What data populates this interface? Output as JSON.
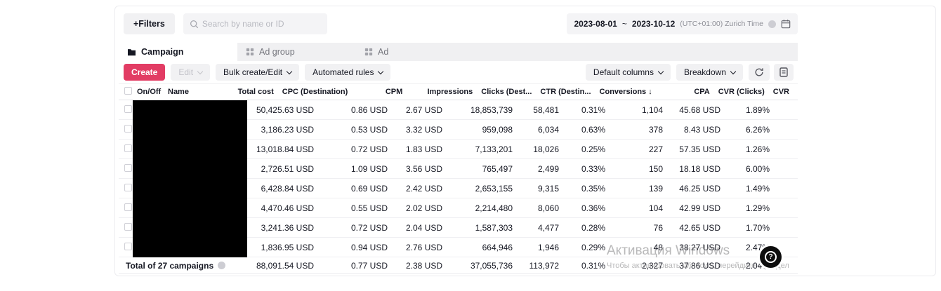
{
  "topbar": {
    "filters_label": "+Filters",
    "search_placeholder": "Search by name or ID",
    "date_start": "2023-08-01",
    "date_separator": "~",
    "date_end": "2023-10-12",
    "timezone_label": "(UTC+01:00) Zurich Time"
  },
  "tabs": [
    {
      "label": "Campaign",
      "active": true
    },
    {
      "label": "Ad group",
      "active": false
    },
    {
      "label": "Ad",
      "active": false
    }
  ],
  "toolbar": {
    "create": "Create",
    "edit": "Edit",
    "bulk": "Bulk create/Edit",
    "automated": "Automated rules",
    "default_columns": "Default columns",
    "breakdown": "Breakdown"
  },
  "table": {
    "columns": {
      "onoff": "On/Off",
      "name": "Name",
      "total_cost": "Total cost",
      "cpc": "CPC (Destination)",
      "cpm": "CPM",
      "impressions": "Impressions",
      "clicks": "Clicks (Dest...",
      "ctr": "CTR (Destin...",
      "conversions": "Conversions ↓",
      "cpa": "CPA",
      "cvr_clicks": "CVR (Clicks)",
      "cvr": "CVR"
    },
    "rows": [
      [
        "50,425.63 USD",
        "0.86 USD",
        "2.67 USD",
        "18,853,739",
        "58,481",
        "0.31%",
        "1,104",
        "45.68 USD",
        "1.89%"
      ],
      [
        "3,186.23 USD",
        "0.53 USD",
        "3.32 USD",
        "959,098",
        "6,034",
        "0.63%",
        "378",
        "8.43 USD",
        "6.26%"
      ],
      [
        "13,018.84 USD",
        "0.72 USD",
        "1.83 USD",
        "7,133,201",
        "18,026",
        "0.25%",
        "227",
        "57.35 USD",
        "1.26%"
      ],
      [
        "2,726.51 USD",
        "1.09 USD",
        "3.56 USD",
        "765,497",
        "2,499",
        "0.33%",
        "150",
        "18.18 USD",
        "6.00%"
      ],
      [
        "6,428.84 USD",
        "0.69 USD",
        "2.42 USD",
        "2,653,155",
        "9,315",
        "0.35%",
        "139",
        "46.25 USD",
        "1.49%"
      ],
      [
        "4,470.46 USD",
        "0.55 USD",
        "2.02 USD",
        "2,214,480",
        "8,060",
        "0.36%",
        "104",
        "42.99 USD",
        "1.29%"
      ],
      [
        "3,241.36 USD",
        "0.72 USD",
        "2.04 USD",
        "1,587,303",
        "4,477",
        "0.28%",
        "76",
        "42.65 USD",
        "1.70%"
      ],
      [
        "1,836.95 USD",
        "0.94 USD",
        "2.76 USD",
        "664,946",
        "1,946",
        "0.29%",
        "48",
        "38.27 USD",
        "2.47%"
      ]
    ],
    "total_label": "Total of 27 campaigns",
    "totals": [
      "88,091.54 USD",
      "0.77 USD",
      "2.38 USD",
      "37,055,736",
      "113,972",
      "0.31%",
      "2,327",
      "37.86 USD",
      "2.04%"
    ]
  },
  "watermark": {
    "line1": "Активация Windows",
    "line2": "Чтобы активировать Windows, перейдите в раздел"
  },
  "help": {
    "label": "?"
  },
  "colors": {
    "accent": "#e23c64"
  }
}
